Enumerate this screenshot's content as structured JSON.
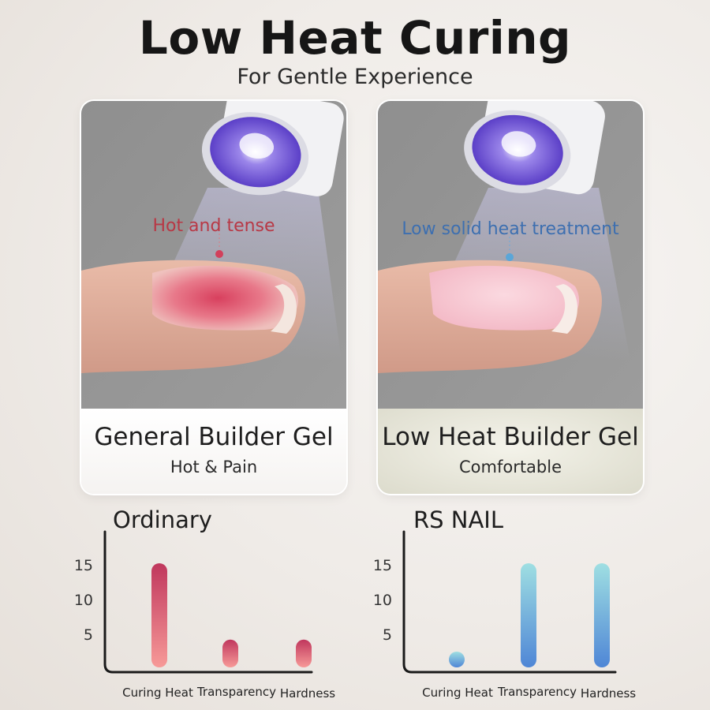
{
  "header": {
    "title": "Low Heat Curing",
    "subtitle": "For Gentle Experience"
  },
  "cards": [
    {
      "callout": "Hot and tense",
      "label": "General Builder Gel",
      "sublabel": "Hot & Pain",
      "accent": "#b83845"
    },
    {
      "callout": "Low solid heat treatment",
      "label": "Low Heat Builder Gel",
      "sublabel": "Comfortable",
      "accent": "#3d6fb0"
    }
  ],
  "chart_data": [
    {
      "type": "bar",
      "title": "Ordinary",
      "categories": [
        "Curing Heat",
        "Transparency",
        "Hardness"
      ],
      "values": [
        15,
        4,
        4
      ],
      "yticks": [
        5,
        10,
        15
      ],
      "ylim": [
        0,
        17
      ],
      "grid": false,
      "colors": {
        "top": "#c0375d",
        "bottom": "#f79a98"
      }
    },
    {
      "type": "bar",
      "title": "RS NAIL",
      "categories": [
        "Curing Heat",
        "Transparency",
        "Hardness"
      ],
      "values": [
        1,
        15,
        15
      ],
      "yticks": [
        5,
        10,
        15
      ],
      "ylim": [
        0,
        17
      ],
      "grid": false,
      "colors": {
        "top": "#9fdfe2",
        "bottom": "#4f86d6"
      }
    }
  ]
}
